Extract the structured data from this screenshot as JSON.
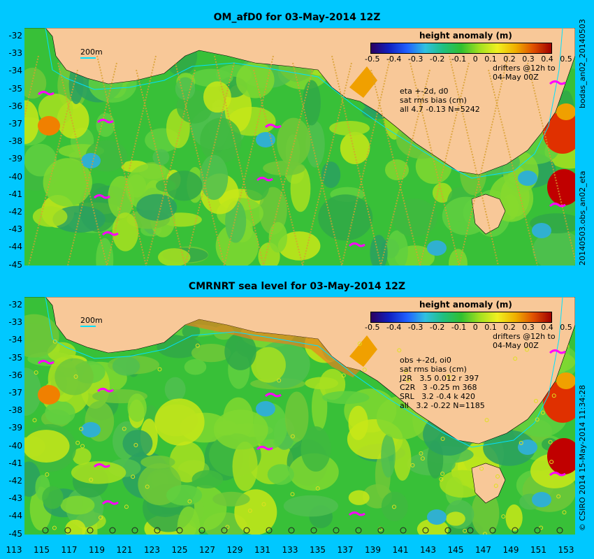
{
  "top": {
    "title": "OM_afD0 for 03-May-2014 12Z",
    "side_label_top": "bodas_an02_20140503",
    "side_label_bottom": "20140503.obs_an02_eta",
    "stats_lines": [
      "eta +-2d, d0",
      "sat rms bias (cm)",
      "all 4.7 -0.13 N=5242"
    ]
  },
  "bottom": {
    "title": "CMRNRT sea level  for 03-May-2014 12Z",
    "side_label": "15-May-2014 11:34:28",
    "copyright": "© CSIRO 2014",
    "stats_lines": [
      "obs +-2d, oi0",
      "sat rms bias (cm)",
      "J2R   3.5 0.012 r 397",
      "C2R   3 -0.25 m 368",
      "SRL   3.2 -0.4 k 420",
      "all   3.2 -0.22 N=1185"
    ]
  },
  "legend": {
    "title": "height anomaly  (m)",
    "ticks": [
      "-0.5",
      "-0.4",
      "-0.3",
      "-0.2",
      "-0.1",
      "0",
      "0.1",
      "0.2",
      "0.3",
      "0.4",
      "0.5"
    ],
    "drifters_line1": "drifters @12h to",
    "drifters_line2": "04-May 00Z"
  },
  "scale_label": "200m",
  "y_ticks": [
    "-32",
    "-33",
    "-34",
    "-35",
    "-36",
    "-37",
    "-38",
    "-39",
    "-40",
    "-41",
    "-42",
    "-43",
    "-44",
    "-45"
  ],
  "x_ticks": [
    "113",
    "115",
    "117",
    "119",
    "121",
    "123",
    "125",
    "127",
    "129",
    "131",
    "133",
    "135",
    "137",
    "139",
    "141",
    "143",
    "145",
    "147",
    "149",
    "151",
    "153"
  ],
  "colors": {
    "background": "#00c8ff",
    "land": "#f8c898",
    "ocean_mid": "#38c038",
    "positive": "#e03000",
    "negative": "#2060ff",
    "drifter": "#ff00ff",
    "contour": "#00e0ff"
  }
}
